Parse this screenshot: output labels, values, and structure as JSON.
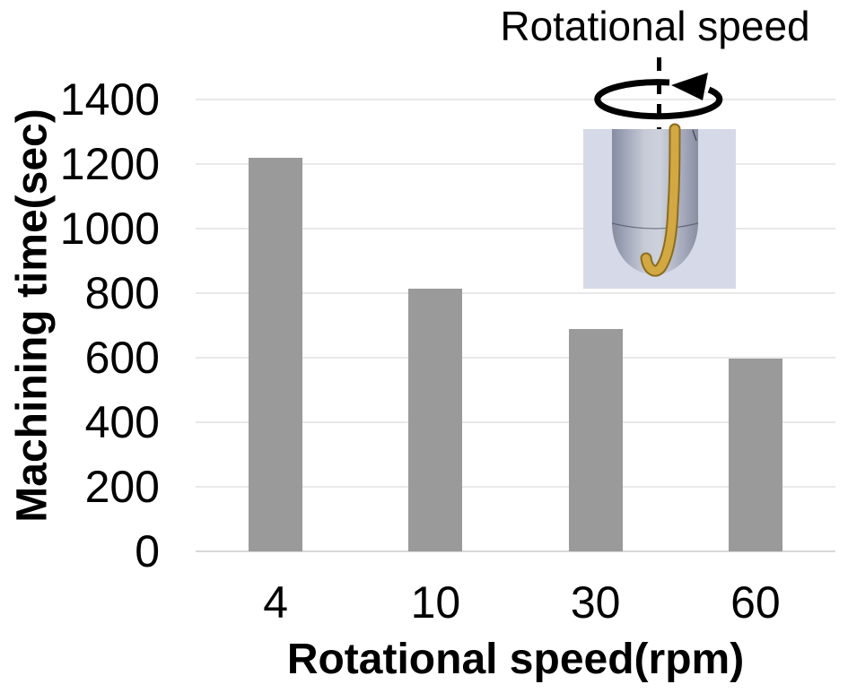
{
  "chart_data": {
    "type": "bar",
    "categories": [
      "4",
      "10",
      "30",
      "60"
    ],
    "values": [
      1220,
      815,
      690,
      597
    ],
    "title": "",
    "xlabel": "Rotational speed(rpm)",
    "ylabel": "Machining time(sec)",
    "ylim": [
      0,
      1400
    ],
    "yticks": [
      0,
      200,
      400,
      600,
      800,
      1000,
      1200,
      1400
    ],
    "grid": true,
    "legend": "none",
    "bar_color": "#9A9A9A",
    "gridline_color": "#E9E9E9",
    "axisline_color": "#D8D8D8"
  },
  "inset": {
    "label": "Rotational speed",
    "background": "#D6DAE8",
    "wire_color": "#D2A843",
    "wire_edge_color": "#8A6C20",
    "arrow_color": "#000000"
  }
}
